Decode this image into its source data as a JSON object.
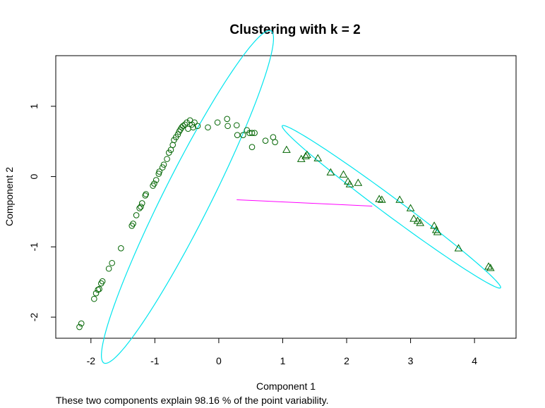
{
  "chart_data": {
    "type": "scatter",
    "title": "Clustering with k =  2",
    "xlabel": "Component 1",
    "ylabel": "Component 2",
    "footnote": "These two components explain 98.16 % of the point variability.",
    "xlim": [
      -2.55,
      4.65
    ],
    "ylim": [
      -2.3,
      1.72
    ],
    "xticks": [
      -2,
      -1,
      0,
      1,
      2,
      3,
      4
    ],
    "yticks": [
      -2,
      -1,
      0,
      1
    ],
    "grid": false,
    "colors": {
      "points": "#006400",
      "ellipse": "#00e5ee",
      "segment": "#ff00ff"
    },
    "series": [
      {
        "marker": "circle",
        "points": [
          [
            -2.18,
            -2.14
          ],
          [
            -2.15,
            -2.09
          ],
          [
            -1.95,
            -1.74
          ],
          [
            -1.92,
            -1.66
          ],
          [
            -1.89,
            -1.61
          ],
          [
            -1.87,
            -1.6
          ],
          [
            -1.84,
            -1.52
          ],
          [
            -1.82,
            -1.49
          ],
          [
            -1.72,
            -1.31
          ],
          [
            -1.67,
            -1.23
          ],
          [
            -1.53,
            -1.02
          ],
          [
            -1.36,
            -0.7
          ],
          [
            -1.34,
            -0.67
          ],
          [
            -1.29,
            -0.55
          ],
          [
            -1.24,
            -0.45
          ],
          [
            -1.22,
            -0.43
          ],
          [
            -1.2,
            -0.38
          ],
          [
            -1.15,
            -0.27
          ],
          [
            -1.14,
            -0.25
          ],
          [
            -1.03,
            -0.13
          ],
          [
            -1.01,
            -0.1
          ],
          [
            -0.98,
            -0.05
          ],
          [
            -0.94,
            0.04
          ],
          [
            -0.93,
            0.07
          ],
          [
            -0.88,
            0.13
          ],
          [
            -0.86,
            0.17
          ],
          [
            -0.81,
            0.25
          ],
          [
            -0.78,
            0.34
          ],
          [
            -0.75,
            0.38
          ],
          [
            -0.72,
            0.45
          ],
          [
            -0.7,
            0.52
          ],
          [
            -0.67,
            0.56
          ],
          [
            -0.64,
            0.6
          ],
          [
            -0.62,
            0.64
          ],
          [
            -0.6,
            0.67
          ],
          [
            -0.58,
            0.7
          ],
          [
            -0.56,
            0.72
          ],
          [
            -0.53,
            0.74
          ],
          [
            -0.5,
            0.77
          ],
          [
            -0.48,
            0.68
          ],
          [
            -0.45,
            0.8
          ],
          [
            -0.42,
            0.74
          ],
          [
            -0.4,
            0.7
          ],
          [
            -0.38,
            0.77
          ],
          [
            -0.33,
            0.72
          ],
          [
            -0.17,
            0.7
          ],
          [
            -0.02,
            0.77
          ],
          [
            0.13,
            0.82
          ],
          [
            0.14,
            0.72
          ],
          [
            0.28,
            0.73
          ],
          [
            0.29,
            0.59
          ],
          [
            0.38,
            0.59
          ],
          [
            0.44,
            0.66
          ],
          [
            0.48,
            0.62
          ],
          [
            0.52,
            0.62
          ],
          [
            0.56,
            0.62
          ],
          [
            0.52,
            0.42
          ],
          [
            0.73,
            0.51
          ],
          [
            0.85,
            0.56
          ],
          [
            0.88,
            0.49
          ]
        ]
      },
      {
        "marker": "triangle",
        "points": [
          [
            1.06,
            0.38
          ],
          [
            1.29,
            0.25
          ],
          [
            1.36,
            0.29
          ],
          [
            1.38,
            0.31
          ],
          [
            1.55,
            0.26
          ],
          [
            1.75,
            0.06
          ],
          [
            1.95,
            0.03
          ],
          [
            2.02,
            -0.07
          ],
          [
            2.05,
            -0.11
          ],
          [
            2.18,
            -0.09
          ],
          [
            2.51,
            -0.32
          ],
          [
            2.55,
            -0.33
          ],
          [
            2.83,
            -0.33
          ],
          [
            3.0,
            -0.45
          ],
          [
            3.05,
            -0.6
          ],
          [
            3.11,
            -0.63
          ],
          [
            3.15,
            -0.66
          ],
          [
            3.37,
            -0.7
          ],
          [
            3.4,
            -0.76
          ],
          [
            3.42,
            -0.79
          ],
          [
            3.75,
            -1.02
          ],
          [
            4.22,
            -1.28
          ],
          [
            4.25,
            -1.3
          ]
        ]
      }
    ],
    "ellipses": [
      {
        "cx": -0.49,
        "cy": -0.29,
        "a": 2.7,
        "b": 0.36,
        "angle_deg": 61
      },
      {
        "cx": 2.7,
        "cy": -0.43,
        "a": 2.06,
        "b": 0.13,
        "angle_deg": -34
      }
    ],
    "segment": {
      "from": [
        0.28,
        -0.33
      ],
      "to": [
        2.4,
        -0.42
      ]
    }
  }
}
